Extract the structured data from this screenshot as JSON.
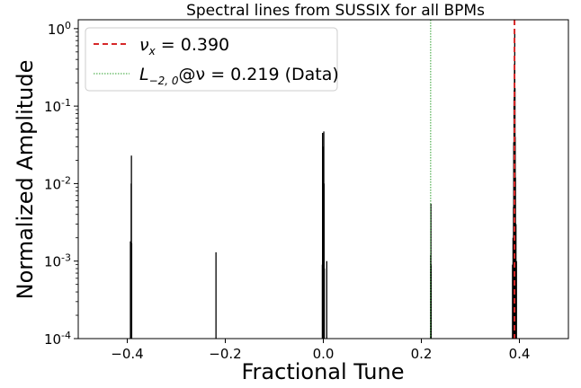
{
  "chart_data": {
    "type": "bar",
    "title": "Spectral lines from SUSSIX for all BPMs",
    "xlabel": "Fractional Tune",
    "ylabel": "Normalized Amplitude",
    "xlim": [
      -0.5,
      0.5
    ],
    "ylim": [
      0.0001,
      1.3
    ],
    "yscale": "log",
    "x_ticks": [
      -0.4,
      -0.2,
      0.0,
      0.2,
      0.4
    ],
    "x_tick_labels": [
      "−0.4",
      "−0.2",
      "0.0",
      "0.2",
      "0.4"
    ],
    "y_ticks": [
      0.0001,
      0.001,
      0.01,
      0.1,
      1
    ],
    "y_tick_labels": [
      {
        "base": "10",
        "exp": "-4"
      },
      {
        "base": "10",
        "exp": "-3"
      },
      {
        "base": "10",
        "exp": "-2"
      },
      {
        "base": "10",
        "exp": "-1"
      },
      {
        "base": "10",
        "exp": "0"
      }
    ],
    "series": [
      {
        "color": "#000000",
        "x": [
          -0.3935,
          -0.392,
          -0.3915,
          -0.391,
          -0.219,
          -0.002,
          -0.0015,
          -0.001,
          0.001,
          0.0015,
          0.002,
          0.007,
          0.219,
          0.2195,
          0.22,
          0.386,
          0.387,
          0.388,
          0.3885,
          0.389,
          0.3895,
          0.39,
          0.3905,
          0.391,
          0.3915,
          0.392,
          0.393,
          0.394
        ],
        "values": [
          0.0018,
          0.01,
          0.023,
          0.0017,
          0.0013,
          0.0009,
          0.045,
          0.03,
          0.047,
          0.01,
          0.0008,
          0.001,
          0.0012,
          0.0055,
          0.0009,
          0.0009,
          0.002,
          0.005,
          0.034,
          0.12,
          0.16,
          0.35,
          0.95,
          0.17,
          0.04,
          0.012,
          0.003,
          0.001
        ]
      }
    ],
    "reference_lines": [
      {
        "x": 0.39,
        "color": "#d62728",
        "style": "dashed"
      },
      {
        "x": 0.219,
        "color": "#2ca02c",
        "style": "dotted"
      }
    ],
    "legend": {
      "placement": "top-left",
      "entries": [
        {
          "symbol": "ν",
          "subscript": "x",
          "text": " = 0.390",
          "color": "#d62728",
          "style": "dashed"
        },
        {
          "symbol": "L",
          "subscript": "−2, 0",
          "text": "@ν = 0.219 (Data)",
          "color": "#2ca02c",
          "style": "dotted"
        }
      ]
    }
  }
}
